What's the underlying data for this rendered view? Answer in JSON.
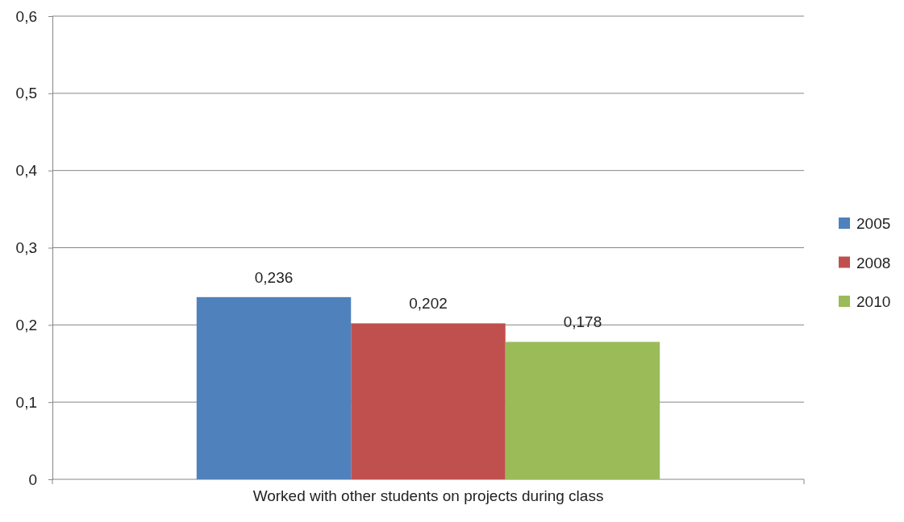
{
  "chart_data": {
    "type": "bar",
    "categories": [
      "Worked with other students on projects during class"
    ],
    "series": [
      {
        "name": "2005",
        "color": "#4f81bd",
        "values": [
          0.236
        ],
        "value_labels": [
          "0,236"
        ]
      },
      {
        "name": "2008",
        "color": "#c0504d",
        "values": [
          0.202
        ],
        "value_labels": [
          "0,202"
        ]
      },
      {
        "name": "2010",
        "color": "#9bbb59",
        "values": [
          0.178
        ],
        "value_labels": [
          "0,178"
        ]
      }
    ],
    "ylim": [
      0,
      0.6
    ],
    "yticks": [
      0,
      {
        "value": 0.1,
        "label": "0,1"
      },
      {
        "value": 0.2,
        "label": "0,2"
      },
      {
        "value": 0.3,
        "label": "0,3"
      },
      {
        "value": 0.4,
        "label": "0,4"
      },
      {
        "value": 0.5,
        "label": "0,5"
      },
      {
        "value": 0.6,
        "label": "0,6"
      }
    ],
    "grid": "y",
    "legend": "right"
  }
}
